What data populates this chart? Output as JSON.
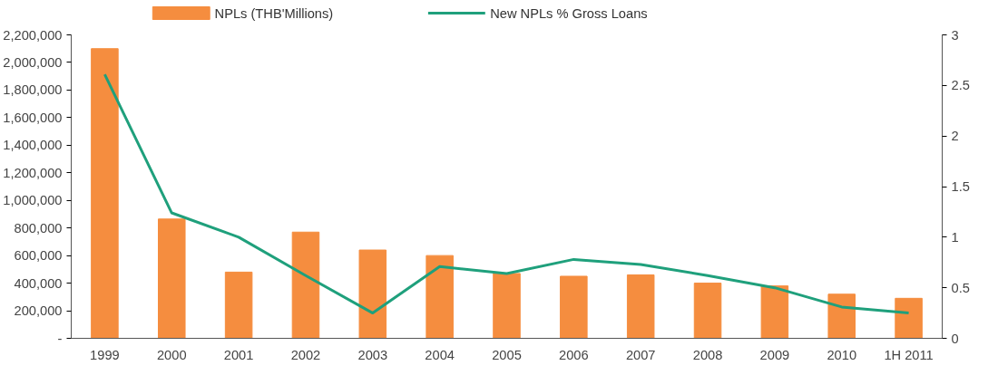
{
  "chart_data": {
    "type": "bar",
    "categories": [
      "1999",
      "2000",
      "2001",
      "2002",
      "2003",
      "2004",
      "2005",
      "2006",
      "2007",
      "2008",
      "2009",
      "2010",
      "1H 2011"
    ],
    "series": [
      {
        "name": "NPLs (THB'Millions)",
        "color": "#f58d3f",
        "values": [
          2100000,
          865000,
          480000,
          770000,
          640000,
          600000,
          470000,
          450000,
          460000,
          400000,
          380000,
          320000,
          290000
        ]
      },
      {
        "name": "New NPLs % Gross Loans",
        "type": "line",
        "axis": "y2",
        "color": "#1fa07c",
        "values": [
          2.61,
          1.24,
          1.0,
          0.62,
          0.25,
          0.71,
          0.64,
          0.78,
          0.73,
          0.62,
          0.5,
          0.31,
          0.25
        ]
      }
    ],
    "ylim": [
      0,
      2200000
    ],
    "yticks": [
      {
        "value": 0,
        "label": "-"
      },
      {
        "value": 200000,
        "label": "200,000"
      },
      {
        "value": 400000,
        "label": "400,000"
      },
      {
        "value": 600000,
        "label": "600,000"
      },
      {
        "value": 800000,
        "label": "800,000"
      },
      {
        "value": 1000000,
        "label": "1,000,000"
      },
      {
        "value": 1200000,
        "label": "1,200,000"
      },
      {
        "value": 1400000,
        "label": "1,400,000"
      },
      {
        "value": 1600000,
        "label": "1,600,000"
      },
      {
        "value": 1800000,
        "label": "1,800,000"
      },
      {
        "value": 2000000,
        "label": "2,000,000"
      },
      {
        "value": 2200000,
        "label": "2,200,000"
      }
    ],
    "y2lim": [
      0,
      3
    ],
    "y2ticks": [
      0,
      0.5,
      1,
      1.5,
      2,
      2.5,
      3
    ],
    "grid": false,
    "legend": "top left"
  }
}
